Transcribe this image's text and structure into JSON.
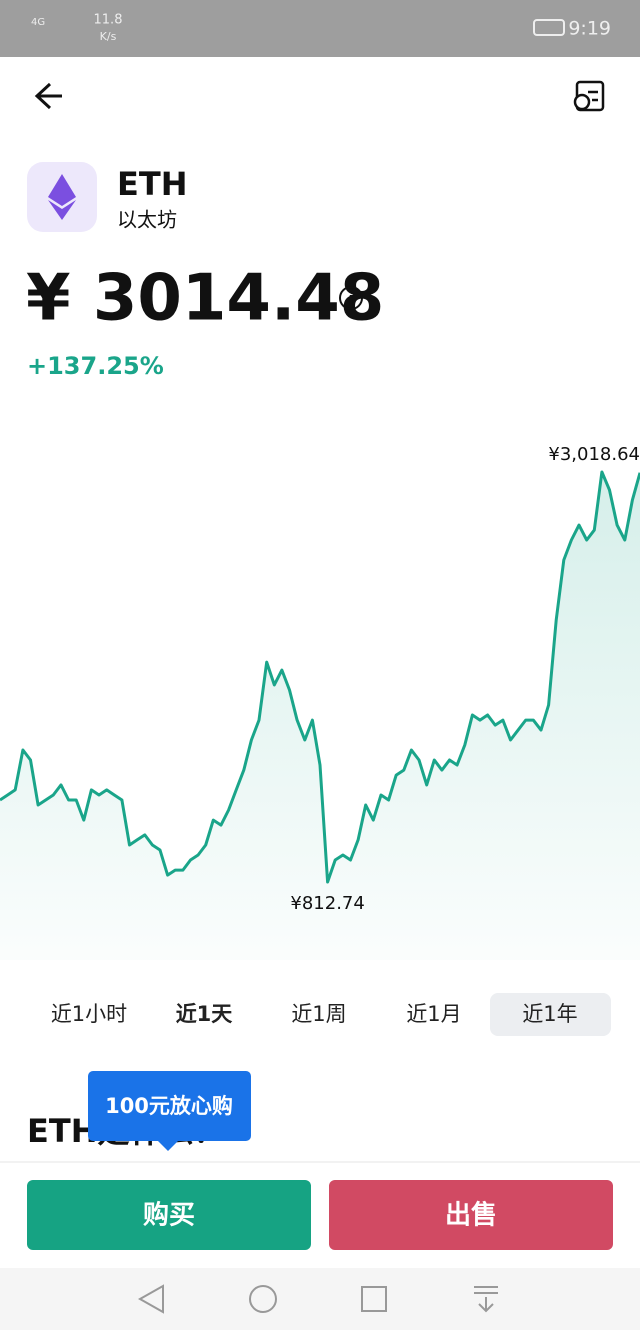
{
  "status_bar": {
    "network": "4G",
    "speed": "11.8",
    "speed_unit": "K/s",
    "time": "9:19"
  },
  "asset": {
    "symbol": "ETH",
    "name": "以太坊"
  },
  "price": "¥ 3014.48",
  "change": "+137.25%",
  "chart_data": {
    "type": "line",
    "color": "#1aa58a",
    "values": [
      1254,
      1281,
      1308,
      1523,
      1469,
      1227,
      1254,
      1281,
      1335,
      1254,
      1254,
      1146,
      1308,
      1281,
      1308,
      1281,
      1254,
      1012,
      1039,
      1066,
      1012,
      985,
      850,
      877,
      877,
      931,
      958,
      1012,
      1146,
      1119,
      1200,
      1308,
      1415,
      1577,
      1684,
      1996,
      1873,
      1953,
      1846,
      1684,
      1577,
      1684,
      1442,
      812.74,
      931,
      958,
      931,
      1039,
      1227,
      1146,
      1281,
      1254,
      1388,
      1415,
      1523,
      1469,
      1335,
      1469,
      1415,
      1469,
      1442,
      1550,
      1711,
      1684,
      1711,
      1657,
      1684,
      1577,
      1630,
      1684,
      1684,
      1630,
      1765,
      2222,
      2545,
      2653,
      2733,
      2653,
      2706,
      3018.64,
      2922,
      2733,
      2653,
      2868,
      3014.48
    ],
    "value_labels": [
      null,
      null,
      null,
      null,
      null,
      null,
      null,
      null,
      null,
      null,
      null,
      null,
      null,
      null,
      null,
      null,
      null,
      null,
      null,
      null,
      null,
      null,
      null,
      null,
      null,
      null,
      null,
      null,
      null,
      null,
      null,
      null,
      null,
      null,
      null,
      null,
      null,
      null,
      null,
      null,
      null,
      null,
      null,
      "¥812.74",
      null,
      null,
      null,
      null,
      null,
      null,
      null,
      null,
      null,
      null,
      null,
      null,
      null,
      null,
      null,
      null,
      null,
      null,
      null,
      null,
      null,
      null,
      null,
      null,
      null,
      null,
      null,
      null,
      null,
      null,
      null,
      null,
      null,
      null,
      null,
      "¥3,018.64",
      null,
      null,
      null,
      null,
      null
    ]
  },
  "tabs": [
    "近1小时",
    "近1天",
    "近1周",
    "近1月",
    "近1年"
  ],
  "section_title": "ETH是什么？",
  "promo_badge": "100元放心购",
  "buttons": {
    "buy": "购买",
    "sell": "出售"
  }
}
